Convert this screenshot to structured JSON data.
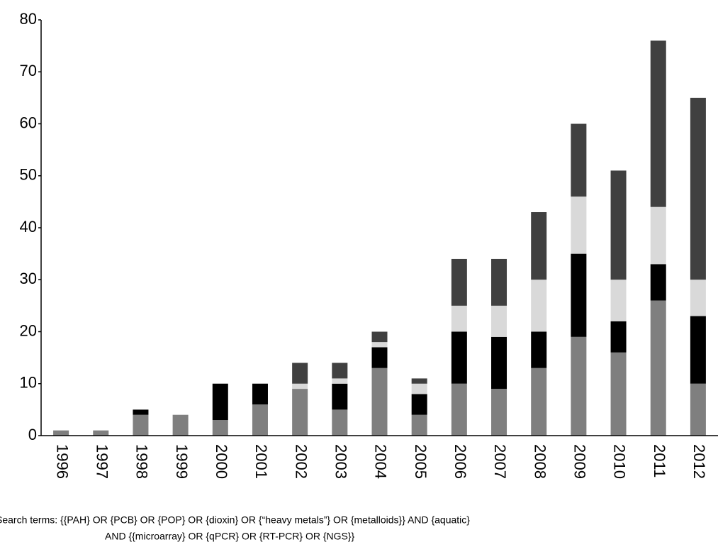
{
  "chart_data": {
    "type": "stacked_bar",
    "categories": [
      "1996",
      "1997",
      "1998",
      "1999",
      "2000",
      "2001",
      "2002",
      "2003",
      "2004",
      "2005",
      "2006",
      "2007",
      "2008",
      "2009",
      "2010",
      "2011",
      "2012"
    ],
    "series": [
      {
        "color": "#7f7f7f",
        "values": [
          1,
          1,
          4,
          4,
          3,
          6,
          9,
          5,
          13,
          4,
          10,
          9,
          13,
          19,
          16,
          26,
          10
        ]
      },
      {
        "color": "#000000",
        "values": [
          0,
          0,
          1,
          0,
          7,
          4,
          0,
          5,
          4,
          4,
          10,
          10,
          7,
          16,
          6,
          7,
          13
        ]
      },
      {
        "color": "#d9d9d9",
        "values": [
          0,
          0,
          0,
          0,
          0,
          0,
          1,
          1,
          1,
          2,
          5,
          6,
          10,
          11,
          8,
          11,
          7
        ]
      },
      {
        "color": "#404040",
        "values": [
          0,
          0,
          0,
          0,
          0,
          0,
          4,
          3,
          2,
          1,
          9,
          9,
          13,
          14,
          21,
          32,
          35
        ]
      }
    ],
    "ylim": [
      0,
      80
    ],
    "yticks": [
      0,
      10,
      20,
      30,
      40,
      50,
      60,
      70,
      80
    ],
    "annotations": [
      "Search terms: {{PAH} OR {PCB} OR {POP} OR {dioxin} OR {“heavy metals”} OR {metalloids}} AND {aquatic}",
      "AND {{microarray} OR {qPCR} OR {RT-PCR} OR {NGS}}"
    ]
  }
}
